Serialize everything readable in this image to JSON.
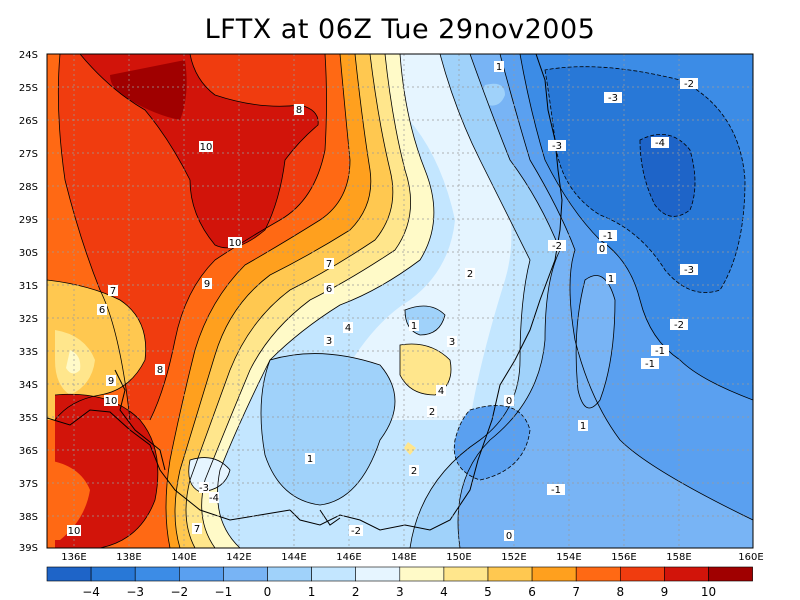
{
  "title": "LFTX at 06Z Tue 29nov2005",
  "map": {
    "lat_ticks": [
      "24S",
      "25S",
      "26S",
      "27S",
      "28S",
      "29S",
      "30S",
      "31S",
      "32S",
      "33S",
      "34S",
      "35S",
      "36S",
      "37S",
      "38S",
      "39S"
    ],
    "lon_ticks": [
      "136E",
      "138E",
      "140E",
      "142E",
      "144E",
      "146E",
      "148E",
      "150E",
      "152E",
      "154E",
      "156E",
      "158E",
      "160E"
    ],
    "contour_labels": [
      {
        "t": "8"
      },
      {
        "t": "10"
      },
      {
        "t": "10"
      },
      {
        "t": "9"
      },
      {
        "t": "7"
      },
      {
        "t": "6"
      },
      {
        "t": "7"
      },
      {
        "t": "6"
      },
      {
        "t": "8"
      },
      {
        "t": "9"
      },
      {
        "t": "10"
      },
      {
        "t": "4"
      },
      {
        "t": "3"
      },
      {
        "t": "2"
      },
      {
        "t": "1"
      },
      {
        "t": "3"
      },
      {
        "t": "4"
      },
      {
        "t": "2"
      },
      {
        "t": "1"
      },
      {
        "t": "2"
      },
      {
        "t": "0"
      },
      {
        "t": "1"
      },
      {
        "t": "-3"
      },
      {
        "t": "-4"
      },
      {
        "t": "-3"
      },
      {
        "t": "-2"
      },
      {
        "t": "-2"
      },
      {
        "t": "-1"
      },
      {
        "t": "0"
      },
      {
        "t": "1"
      },
      {
        "t": "-3"
      },
      {
        "t": "-2"
      },
      {
        "t": "-1"
      },
      {
        "t": "-1"
      },
      {
        "t": "1"
      },
      {
        "t": "-1"
      },
      {
        "t": "0"
      },
      {
        "t": "-3"
      },
      {
        "t": "-4"
      },
      {
        "t": "10"
      },
      {
        "t": "7"
      },
      {
        "t": "-2"
      }
    ]
  },
  "colorbar": {
    "labels": [
      "-4",
      "-3",
      "-2",
      "-1",
      "0",
      "1",
      "2",
      "3",
      "4",
      "5",
      "6",
      "7",
      "8",
      "9",
      "10"
    ],
    "colors": [
      "#1e64c8",
      "#2878d7",
      "#3c8ce6",
      "#5aa0f0",
      "#78b4f5",
      "#a0d2fa",
      "#c3e6ff",
      "#e6f5ff",
      "#fffac8",
      "#ffe68c",
      "#ffc850",
      "#ffa01e",
      "#ff6914",
      "#f03c0f",
      "#d2140a",
      "#a00000"
    ]
  }
}
